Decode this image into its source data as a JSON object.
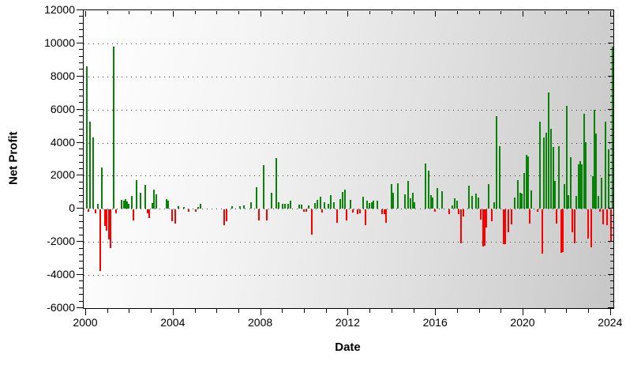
{
  "chart_data": {
    "type": "bar",
    "title": "",
    "xlabel": "Date",
    "ylabel": "Net Profit",
    "xlim": [
      1999.6,
      2024.15
    ],
    "ylim": [
      -6000,
      12000
    ],
    "y_tick_major_step": 2000,
    "y_tick_minor_step": 400,
    "x_tick_major_step_years": 4,
    "x_tick_minor_step_years": 1,
    "x_tick_years": [
      2000,
      2004,
      2008,
      2012,
      2016,
      2020,
      2024
    ],
    "y_tick_values": [
      12000,
      10000,
      8000,
      6000,
      4000,
      2000,
      0,
      -2000,
      -4000,
      -6000
    ],
    "grid": "horizontal dotted lines at each 2000 from -4000 to 10000",
    "legend": "none",
    "colors": {
      "positive_bar": "#0a820a",
      "negative_bar": "#fa0000",
      "plot_bg_left": "#ffffff",
      "plot_bg_right": "#c6c6c6",
      "axis": "#000000"
    },
    "points": [
      [
        2000.04,
        8600
      ],
      [
        2000.11,
        -150
      ],
      [
        2000.18,
        5250
      ],
      [
        2000.32,
        4300
      ],
      [
        2000.43,
        -200
      ],
      [
        2000.54,
        300
      ],
      [
        2000.65,
        -3700
      ],
      [
        2000.72,
        2500
      ],
      [
        2000.87,
        -1000
      ],
      [
        2000.94,
        -1250
      ],
      [
        2001.05,
        -1800
      ],
      [
        2001.12,
        -2300
      ],
      [
        2001.26,
        9800
      ],
      [
        2001.37,
        -200
      ],
      [
        2001.62,
        550
      ],
      [
        2001.73,
        500
      ],
      [
        2001.81,
        600
      ],
      [
        2001.88,
        450
      ],
      [
        2001.95,
        300
      ],
      [
        2002.09,
        800
      ],
      [
        2002.17,
        -650
      ],
      [
        2002.31,
        1750
      ],
      [
        2002.49,
        980
      ],
      [
        2002.71,
        1460
      ],
      [
        2002.82,
        -200
      ],
      [
        2002.89,
        -500
      ],
      [
        2003.03,
        350
      ],
      [
        2003.1,
        1150
      ],
      [
        2003.21,
        860
      ],
      [
        2003.68,
        600
      ],
      [
        2003.75,
        500
      ],
      [
        2003.94,
        -700
      ],
      [
        2004.08,
        -820
      ],
      [
        2004.22,
        150
      ],
      [
        2004.48,
        100
      ],
      [
        2004.69,
        -120
      ],
      [
        2005.02,
        -120
      ],
      [
        2005.13,
        130
      ],
      [
        2005.23,
        300
      ],
      [
        2006.32,
        -950
      ],
      [
        2006.43,
        -720
      ],
      [
        2006.68,
        160
      ],
      [
        2007.04,
        150
      ],
      [
        2007.22,
        220
      ],
      [
        2007.55,
        380
      ],
      [
        2007.8,
        1290
      ],
      [
        2007.91,
        -670
      ],
      [
        2008.12,
        2620
      ],
      [
        2008.27,
        -640
      ],
      [
        2008.48,
        950
      ],
      [
        2008.7,
        3080
      ],
      [
        2008.81,
        400
      ],
      [
        2008.99,
        300
      ],
      [
        2009.1,
        300
      ],
      [
        2009.24,
        300
      ],
      [
        2009.35,
        490
      ],
      [
        2009.75,
        260
      ],
      [
        2009.86,
        250
      ],
      [
        2009.96,
        -110
      ],
      [
        2010.07,
        -110
      ],
      [
        2010.18,
        200
      ],
      [
        2010.32,
        -1490
      ],
      [
        2010.47,
        350
      ],
      [
        2010.58,
        520
      ],
      [
        2010.72,
        730
      ],
      [
        2010.79,
        -160
      ],
      [
        2010.9,
        400
      ],
      [
        2011.08,
        300
      ],
      [
        2011.19,
        810
      ],
      [
        2011.34,
        400
      ],
      [
        2011.48,
        -790
      ],
      [
        2011.62,
        600
      ],
      [
        2011.73,
        1030
      ],
      [
        2011.84,
        1170
      ],
      [
        2011.91,
        -640
      ],
      [
        2012.09,
        520
      ],
      [
        2012.2,
        -160
      ],
      [
        2012.42,
        -250
      ],
      [
        2012.53,
        -200
      ],
      [
        2012.67,
        710
      ],
      [
        2012.78,
        -950
      ],
      [
        2012.85,
        500
      ],
      [
        2012.96,
        350
      ],
      [
        2013.07,
        420
      ],
      [
        2013.14,
        500
      ],
      [
        2013.32,
        500
      ],
      [
        2013.54,
        -280
      ],
      [
        2013.65,
        -250
      ],
      [
        2013.72,
        -790
      ],
      [
        2013.97,
        1480
      ],
      [
        2014.04,
        950
      ],
      [
        2014.26,
        1550
      ],
      [
        2014.58,
        890
      ],
      [
        2014.73,
        1680
      ],
      [
        2014.84,
        650
      ],
      [
        2014.95,
        950
      ],
      [
        2015.02,
        420
      ],
      [
        2015.52,
        2760
      ],
      [
        2015.67,
        2330
      ],
      [
        2015.78,
        820
      ],
      [
        2015.85,
        700
      ],
      [
        2015.96,
        -140
      ],
      [
        2016.06,
        1240
      ],
      [
        2016.28,
        1050
      ],
      [
        2016.61,
        -290
      ],
      [
        2016.75,
        210
      ],
      [
        2016.86,
        660
      ],
      [
        2016.97,
        500
      ],
      [
        2017.04,
        -260
      ],
      [
        2017.15,
        -2050
      ],
      [
        2017.26,
        -420
      ],
      [
        2017.51,
        1410
      ],
      [
        2017.65,
        800
      ],
      [
        2017.83,
        900
      ],
      [
        2017.94,
        700
      ],
      [
        2018.05,
        -620
      ],
      [
        2018.16,
        -2250
      ],
      [
        2018.23,
        -2200
      ],
      [
        2018.3,
        -1100
      ],
      [
        2018.41,
        1480
      ],
      [
        2018.56,
        -700
      ],
      [
        2018.66,
        420
      ],
      [
        2018.77,
        5620
      ],
      [
        2018.92,
        3800
      ],
      [
        2019.1,
        -2100
      ],
      [
        2019.17,
        -2100
      ],
      [
        2019.31,
        -1380
      ],
      [
        2019.46,
        -900
      ],
      [
        2019.6,
        700
      ],
      [
        2019.75,
        1720
      ],
      [
        2019.86,
        960
      ],
      [
        2019.93,
        900
      ],
      [
        2020.04,
        2150
      ],
      [
        2020.14,
        3250
      ],
      [
        2020.22,
        3180
      ],
      [
        2020.29,
        -840
      ],
      [
        2020.36,
        1100
      ],
      [
        2020.65,
        -150
      ],
      [
        2020.76,
        5280
      ],
      [
        2020.87,
        -2680
      ],
      [
        2020.94,
        4330
      ],
      [
        2021.05,
        4620
      ],
      [
        2021.16,
        7040
      ],
      [
        2021.27,
        4850
      ],
      [
        2021.37,
        3760
      ],
      [
        2021.44,
        1700
      ],
      [
        2021.52,
        -860
      ],
      [
        2021.62,
        3800
      ],
      [
        2021.73,
        -2600
      ],
      [
        2021.81,
        -2550
      ],
      [
        2021.88,
        1480
      ],
      [
        2021.99,
        6240
      ],
      [
        2022.06,
        820
      ],
      [
        2022.17,
        3100
      ],
      [
        2022.24,
        -1380
      ],
      [
        2022.35,
        -2050
      ],
      [
        2022.42,
        800
      ],
      [
        2022.53,
        2710
      ],
      [
        2022.6,
        2900
      ],
      [
        2022.67,
        2700
      ],
      [
        2022.78,
        5750
      ],
      [
        2022.85,
        4050
      ],
      [
        2022.96,
        -1760
      ],
      [
        2023.1,
        -2290
      ],
      [
        2023.18,
        1950
      ],
      [
        2023.25,
        5980
      ],
      [
        2023.32,
        4570
      ],
      [
        2023.43,
        800
      ],
      [
        2023.5,
        -150
      ],
      [
        2023.57,
        1860
      ],
      [
        2023.65,
        -900
      ],
      [
        2023.75,
        5280
      ],
      [
        2023.83,
        -950
      ],
      [
        2023.9,
        3620
      ],
      [
        2024.01,
        -1950
      ],
      [
        2024.08,
        9800
      ]
    ]
  }
}
